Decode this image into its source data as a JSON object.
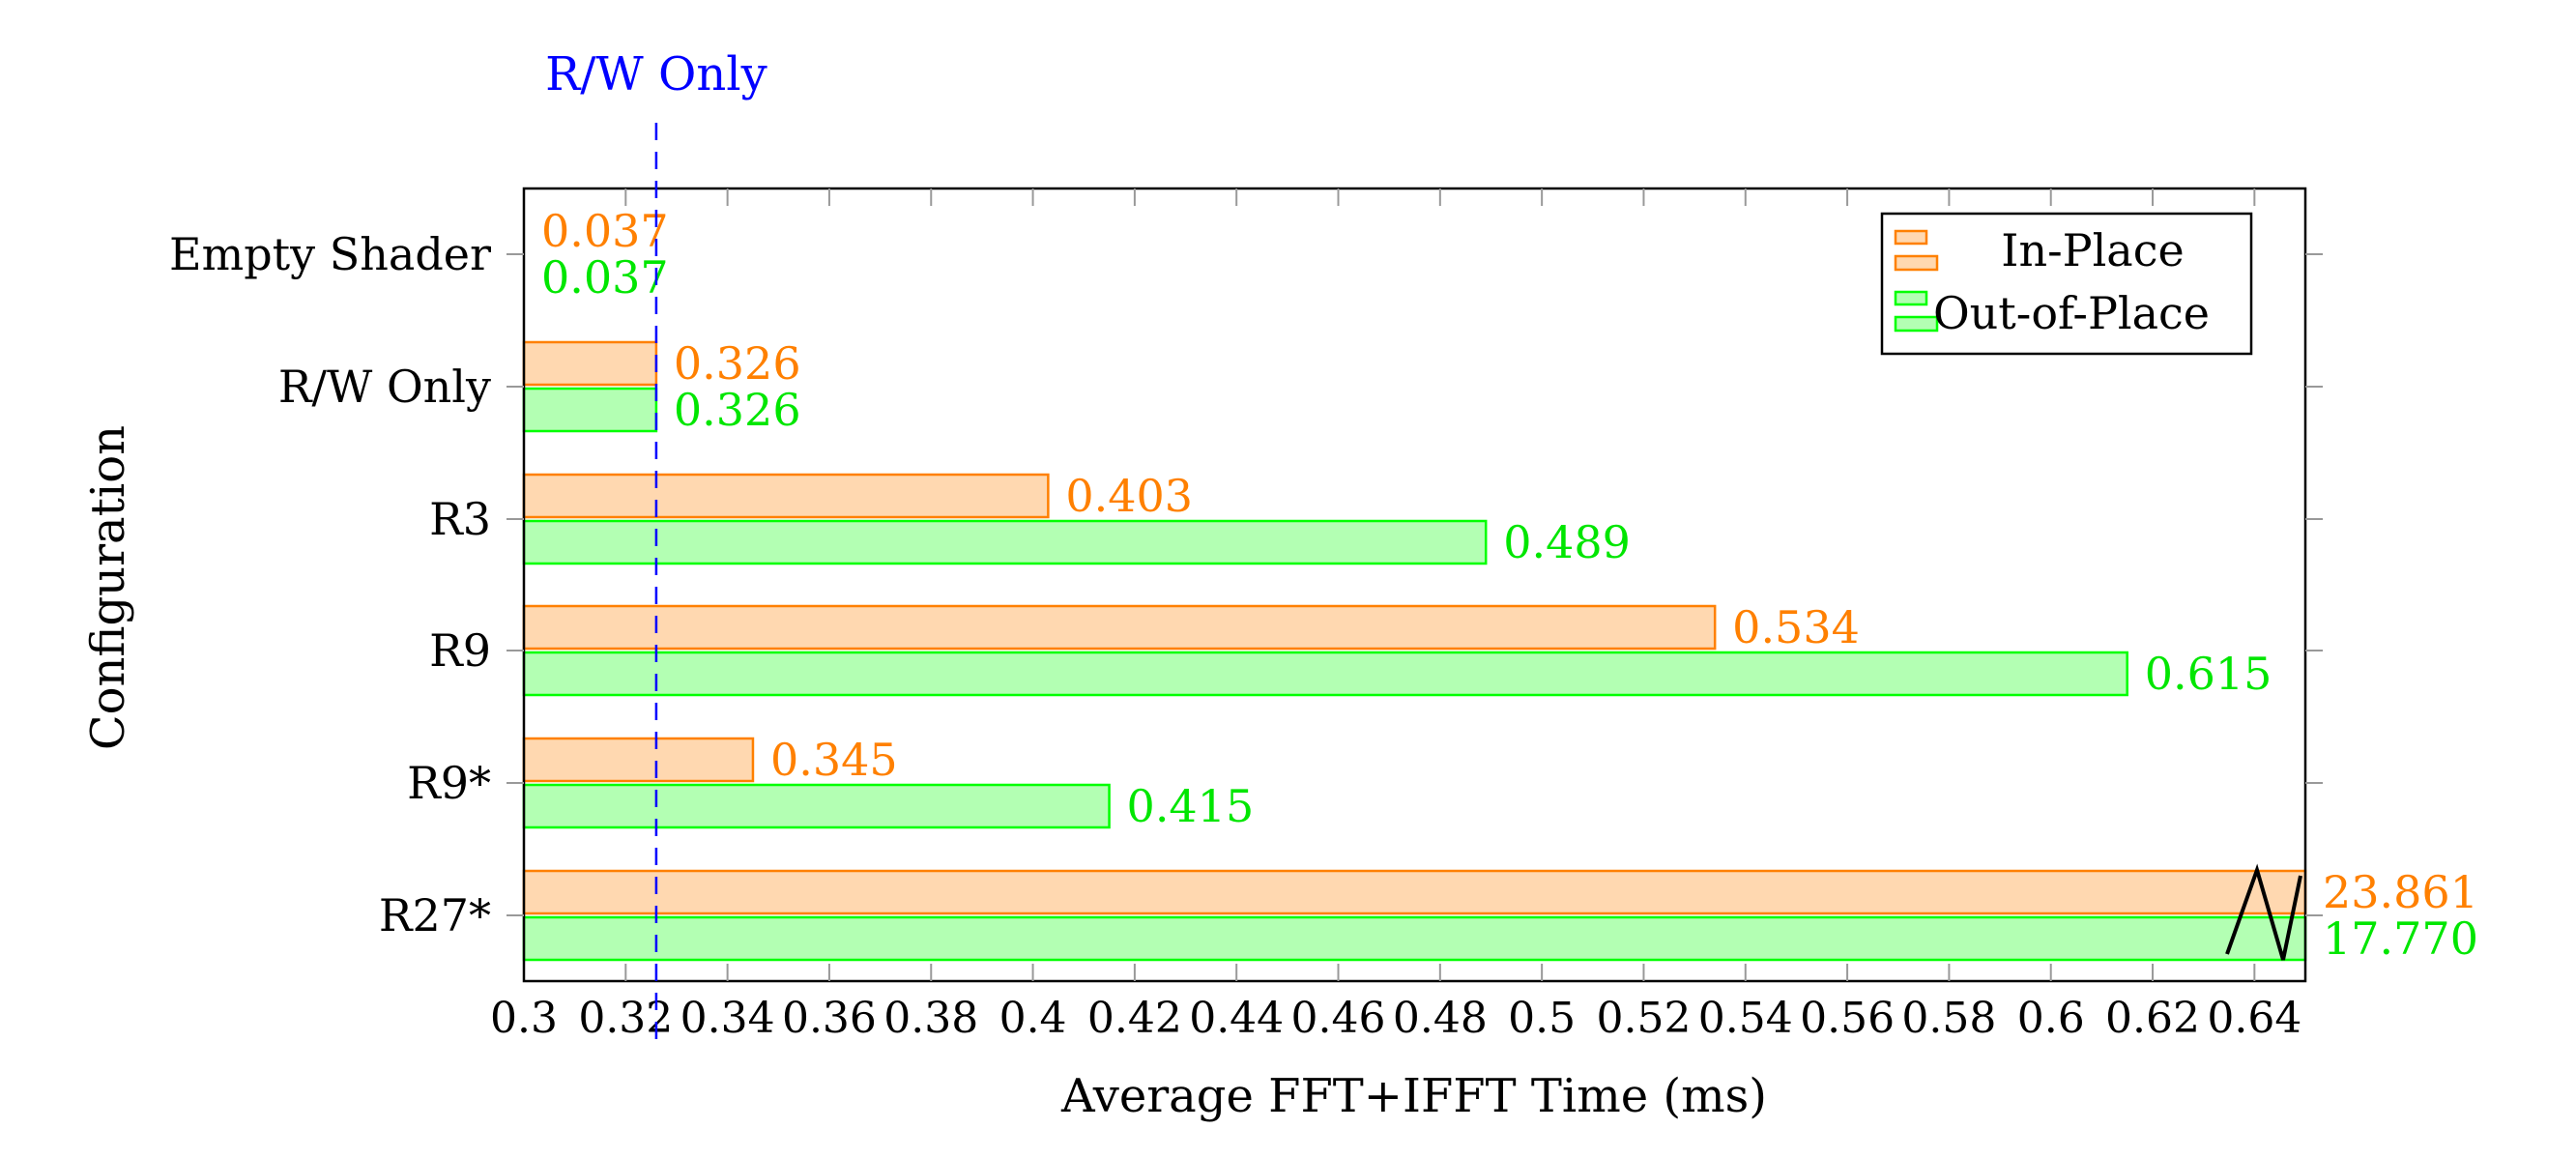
{
  "chart_data": {
    "type": "bar",
    "orientation": "horizontal",
    "title": "",
    "xlabel": "Average FFT+IFFT Time (ms)",
    "ylabel": "Configuration",
    "xlim": [
      0.3,
      0.65
    ],
    "x_ticks": [
      "0.3",
      "0.32",
      "0.34",
      "0.36",
      "0.38",
      "0.4",
      "0.42",
      "0.44",
      "0.46",
      "0.48",
      "0.5",
      "0.52",
      "0.54",
      "0.56",
      "0.58",
      "0.6",
      "0.62",
      "0.64"
    ],
    "categories": [
      "Empty Shader",
      "R/W Only",
      "R3",
      "R9",
      "R9*",
      "R27*"
    ],
    "series": [
      {
        "name": "In-Place",
        "color": "#ff8000",
        "fill": "#ffd8b0",
        "values": [
          0.037,
          0.326,
          0.403,
          0.534,
          0.345,
          23.861
        ],
        "labels": [
          "0.037",
          "0.326",
          "0.403",
          "0.534",
          "0.345",
          "23.861"
        ]
      },
      {
        "name": "Out-of-Place",
        "color": "#00ff00",
        "fill": "#b3ffb3",
        "label_color": "#00e600",
        "values": [
          0.037,
          0.326,
          0.489,
          0.615,
          0.415,
          17.77
        ],
        "labels": [
          "0.037",
          "0.326",
          "0.489",
          "0.615",
          "0.415",
          "17.770"
        ]
      }
    ],
    "reference_line": {
      "label": "R/W Only",
      "x": 0.326,
      "color": "#0000ff",
      "style": "dashed"
    },
    "axis_break": {
      "category": "R27*",
      "note": "values exceed axis range; broken-axis zigzag marker"
    },
    "legend": {
      "position": "upper right",
      "entries": [
        "In-Place",
        "Out-of-Place"
      ]
    },
    "grid": false
  }
}
